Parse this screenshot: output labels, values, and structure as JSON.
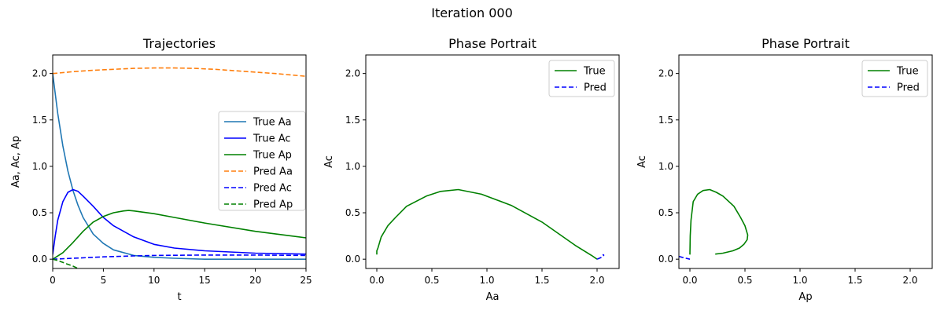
{
  "figure_title": "Iteration 000",
  "chart_data": [
    {
      "type": "line",
      "title": "Trajectories",
      "xlabel": "t",
      "ylabel": "Aa, Ac, Ap",
      "xlim": [
        0,
        25
      ],
      "ylim": [
        -0.1,
        2.2
      ],
      "xticks": [
        0,
        5,
        10,
        15,
        20,
        25
      ],
      "yticks": [
        0.0,
        0.5,
        1.0,
        1.5,
        2.0
      ],
      "grid": false,
      "legend_position": "center-right",
      "series": [
        {
          "name": "True Aa",
          "color": "#1f77b4",
          "dash": "solid",
          "x": [
            0,
            0.5,
            1,
            1.5,
            2,
            2.5,
            3,
            4,
            5,
            6,
            8,
            10,
            12,
            15,
            20,
            25
          ],
          "y": [
            2.0,
            1.57,
            1.22,
            0.95,
            0.74,
            0.58,
            0.45,
            0.27,
            0.17,
            0.1,
            0.04,
            0.02,
            0.01,
            0.0,
            0.0,
            0.0
          ]
        },
        {
          "name": "True Ac",
          "color": "#0000ff",
          "dash": "solid",
          "x": [
            0,
            0.25,
            0.5,
            1,
            1.5,
            2,
            2.5,
            3,
            4,
            5,
            6,
            8,
            10,
            12,
            15,
            20,
            25
          ],
          "y": [
            0.05,
            0.25,
            0.42,
            0.62,
            0.72,
            0.75,
            0.73,
            0.68,
            0.57,
            0.45,
            0.36,
            0.24,
            0.16,
            0.12,
            0.09,
            0.065,
            0.055
          ]
        },
        {
          "name": "True Ap",
          "color": "#008000",
          "dash": "solid",
          "x": [
            0,
            1,
            2,
            3,
            4,
            5,
            6,
            7,
            7.5,
            8,
            10,
            12,
            15,
            20,
            25
          ],
          "y": [
            0.0,
            0.07,
            0.18,
            0.3,
            0.4,
            0.46,
            0.5,
            0.52,
            0.525,
            0.52,
            0.49,
            0.45,
            0.39,
            0.3,
            0.23
          ]
        },
        {
          "name": "Pred Aa",
          "color": "#ff7f0e",
          "dash": "dashed",
          "x": [
            0,
            2,
            4,
            6,
            8,
            10,
            12,
            14,
            16,
            18,
            20,
            22,
            25
          ],
          "y": [
            2.0,
            2.02,
            2.035,
            2.045,
            2.055,
            2.06,
            2.06,
            2.055,
            2.045,
            2.03,
            2.015,
            2.0,
            1.97
          ]
        },
        {
          "name": "Pred Ac",
          "color": "#0000ff",
          "dash": "dashed",
          "x": [
            0,
            2,
            5,
            8,
            10,
            15,
            20,
            25
          ],
          "y": [
            0.0,
            0.01,
            0.025,
            0.035,
            0.04,
            0.045,
            0.045,
            0.04
          ]
        },
        {
          "name": "Pred Ap",
          "color": "#008000",
          "dash": "dashed",
          "x": [
            0,
            0.5,
            1,
            1.5,
            2,
            2.5
          ],
          "y": [
            0.0,
            -0.015,
            -0.035,
            -0.055,
            -0.075,
            -0.1
          ]
        }
      ]
    },
    {
      "type": "line",
      "title": "Phase Portrait",
      "xlabel": "Aa",
      "ylabel": "Ac",
      "xlim": [
        -0.1,
        2.2
      ],
      "ylim": [
        -0.1,
        2.2
      ],
      "xticks": [
        0.0,
        0.5,
        1.0,
        1.5,
        2.0
      ],
      "yticks": [
        0.0,
        0.5,
        1.0,
        1.5,
        2.0
      ],
      "grid": false,
      "legend_position": "top-right",
      "series": [
        {
          "name": "True",
          "color": "#008000",
          "dash": "solid",
          "x": [
            2.0,
            1.95,
            1.8,
            1.5,
            1.22,
            0.95,
            0.74,
            0.58,
            0.45,
            0.27,
            0.17,
            0.1,
            0.04,
            0.02,
            0.01,
            0.0,
            0.0
          ],
          "y": [
            0.0,
            0.04,
            0.15,
            0.4,
            0.58,
            0.7,
            0.75,
            0.73,
            0.68,
            0.57,
            0.45,
            0.36,
            0.24,
            0.16,
            0.12,
            0.09,
            0.05
          ]
        },
        {
          "name": "Pred",
          "color": "#0000ff",
          "dash": "dashed",
          "x": [
            2.0,
            2.02,
            2.04,
            2.05,
            2.06,
            2.06,
            2.05
          ],
          "y": [
            0.0,
            0.01,
            0.02,
            0.03,
            0.04,
            0.045,
            0.05
          ]
        }
      ]
    },
    {
      "type": "line",
      "title": "Phase Portrait",
      "xlabel": "Ap",
      "ylabel": "Ac",
      "xlim": [
        -0.1,
        2.2
      ],
      "ylim": [
        -0.1,
        2.2
      ],
      "xticks": [
        0.0,
        0.5,
        1.0,
        1.5,
        2.0
      ],
      "yticks": [
        0.0,
        0.5,
        1.0,
        1.5,
        2.0
      ],
      "grid": false,
      "legend_position": "top-right",
      "series": [
        {
          "name": "True",
          "color": "#008000",
          "dash": "solid",
          "x": [
            0.0,
            0.003,
            0.01,
            0.03,
            0.07,
            0.12,
            0.18,
            0.24,
            0.3,
            0.4,
            0.46,
            0.5,
            0.525,
            0.52,
            0.49,
            0.45,
            0.39,
            0.3,
            0.23
          ],
          "y": [
            0.05,
            0.25,
            0.42,
            0.62,
            0.7,
            0.74,
            0.75,
            0.72,
            0.68,
            0.57,
            0.45,
            0.36,
            0.26,
            0.21,
            0.16,
            0.12,
            0.09,
            0.065,
            0.055
          ]
        },
        {
          "name": "Pred",
          "color": "#0000ff",
          "dash": "dashed",
          "x": [
            -0.1,
            -0.07,
            -0.035,
            0.0
          ],
          "y": [
            0.03,
            0.02,
            0.01,
            0.0
          ]
        }
      ]
    }
  ]
}
